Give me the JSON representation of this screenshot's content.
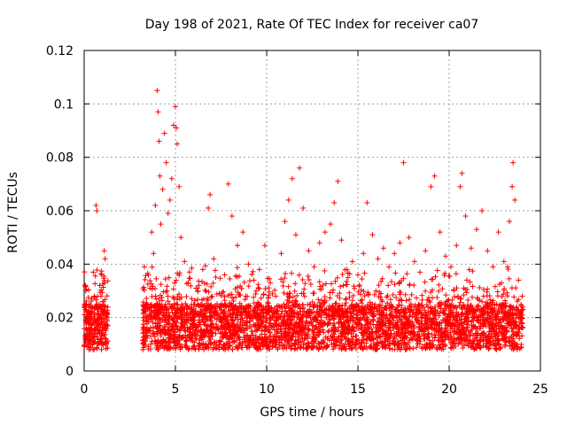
{
  "chart_data": {
    "type": "scatter",
    "title": "Day 198 of 2021, Rate Of TEC Index for receiver ca07",
    "xlabel": "GPS time / hours",
    "ylabel": "ROTI / TECUs",
    "xlim": [
      0,
      25
    ],
    "ylim": [
      0,
      0.12
    ],
    "xticks": [
      "0",
      "5",
      "10",
      "15",
      "20",
      "25"
    ],
    "yticks": [
      "0",
      "0.02",
      "0.04",
      "0.06",
      "0.08",
      "0.1",
      "0.12"
    ],
    "grid": true,
    "marker": "+",
    "series_color": "#ff0000",
    "data_gap_hours": [
      1.3,
      3.2
    ],
    "series": [
      {
        "points": [
          [
            0.05,
            0.012
          ],
          [
            0.1,
            0.018
          ],
          [
            0.15,
            0.009
          ],
          [
            0.2,
            0.022
          ],
          [
            0.25,
            0.014
          ],
          [
            0.3,
            0.011
          ],
          [
            0.35,
            0.024
          ],
          [
            0.4,
            0.016
          ],
          [
            0.45,
            0.013
          ],
          [
            0.5,
            0.037
          ],
          [
            0.55,
            0.028
          ],
          [
            0.6,
            0.019
          ],
          [
            0.65,
            0.062
          ],
          [
            0.7,
            0.06
          ],
          [
            0.75,
            0.021
          ],
          [
            0.8,
            0.015
          ],
          [
            0.85,
            0.032
          ],
          [
            0.9,
            0.011
          ],
          [
            0.95,
            0.008
          ],
          [
            1.0,
            0.018
          ],
          [
            1.05,
            0.026
          ],
          [
            1.1,
            0.045
          ],
          [
            1.15,
            0.042
          ],
          [
            1.2,
            0.012
          ],
          [
            1.25,
            0.02
          ],
          [
            3.3,
            0.039
          ],
          [
            3.4,
            0.024
          ],
          [
            3.5,
            0.015
          ],
          [
            3.6,
            0.031
          ],
          [
            3.7,
            0.052
          ],
          [
            3.8,
            0.044
          ],
          [
            3.9,
            0.062
          ],
          [
            4.0,
            0.105
          ],
          [
            4.05,
            0.097
          ],
          [
            4.1,
            0.086
          ],
          [
            4.15,
            0.073
          ],
          [
            4.2,
            0.055
          ],
          [
            4.3,
            0.068
          ],
          [
            4.4,
            0.089
          ],
          [
            4.5,
            0.078
          ],
          [
            4.6,
            0.059
          ],
          [
            4.7,
            0.064
          ],
          [
            4.8,
            0.072
          ],
          [
            4.9,
            0.092
          ],
          [
            5.0,
            0.099
          ],
          [
            5.05,
            0.091
          ],
          [
            5.1,
            0.085
          ],
          [
            5.2,
            0.069
          ],
          [
            5.3,
            0.05
          ],
          [
            5.5,
            0.041
          ],
          [
            5.7,
            0.033
          ],
          [
            5.9,
            0.027
          ],
          [
            6.2,
            0.031
          ],
          [
            6.5,
            0.038
          ],
          [
            6.8,
            0.061
          ],
          [
            6.9,
            0.066
          ],
          [
            7.1,
            0.042
          ],
          [
            7.4,
            0.029
          ],
          [
            7.7,
            0.036
          ],
          [
            7.9,
            0.07
          ],
          [
            8.1,
            0.058
          ],
          [
            8.4,
            0.047
          ],
          [
            8.7,
            0.052
          ],
          [
            9.0,
            0.04
          ],
          [
            9.3,
            0.034
          ],
          [
            9.6,
            0.038
          ],
          [
            9.9,
            0.047
          ],
          [
            10.2,
            0.033
          ],
          [
            10.5,
            0.028
          ],
          [
            10.8,
            0.044
          ],
          [
            11.0,
            0.056
          ],
          [
            11.2,
            0.064
          ],
          [
            11.4,
            0.072
          ],
          [
            11.6,
            0.051
          ],
          [
            11.8,
            0.076
          ],
          [
            12.0,
            0.061
          ],
          [
            12.3,
            0.045
          ],
          [
            12.6,
            0.039
          ],
          [
            12.9,
            0.048
          ],
          [
            13.2,
            0.052
          ],
          [
            13.5,
            0.055
          ],
          [
            13.7,
            0.063
          ],
          [
            13.9,
            0.071
          ],
          [
            14.1,
            0.049
          ],
          [
            14.4,
            0.038
          ],
          [
            14.7,
            0.041
          ],
          [
            15.0,
            0.036
          ],
          [
            15.3,
            0.044
          ],
          [
            15.5,
            0.063
          ],
          [
            15.8,
            0.051
          ],
          [
            16.1,
            0.042
          ],
          [
            16.4,
            0.046
          ],
          [
            16.7,
            0.039
          ],
          [
            17.0,
            0.044
          ],
          [
            17.3,
            0.048
          ],
          [
            17.5,
            0.078
          ],
          [
            17.8,
            0.05
          ],
          [
            18.1,
            0.041
          ],
          [
            18.4,
            0.037
          ],
          [
            18.7,
            0.045
          ],
          [
            19.0,
            0.069
          ],
          [
            19.2,
            0.073
          ],
          [
            19.5,
            0.052
          ],
          [
            19.8,
            0.043
          ],
          [
            20.1,
            0.039
          ],
          [
            20.4,
            0.047
          ],
          [
            20.6,
            0.069
          ],
          [
            20.7,
            0.074
          ],
          [
            20.9,
            0.058
          ],
          [
            21.2,
            0.046
          ],
          [
            21.5,
            0.053
          ],
          [
            21.8,
            0.06
          ],
          [
            22.1,
            0.045
          ],
          [
            22.4,
            0.039
          ],
          [
            22.7,
            0.052
          ],
          [
            23.0,
            0.041
          ],
          [
            23.3,
            0.056
          ],
          [
            23.45,
            0.069
          ],
          [
            23.5,
            0.078
          ],
          [
            23.6,
            0.064
          ],
          [
            23.8,
            0.034
          ],
          [
            24.0,
            0.028
          ]
        ]
      }
    ]
  }
}
